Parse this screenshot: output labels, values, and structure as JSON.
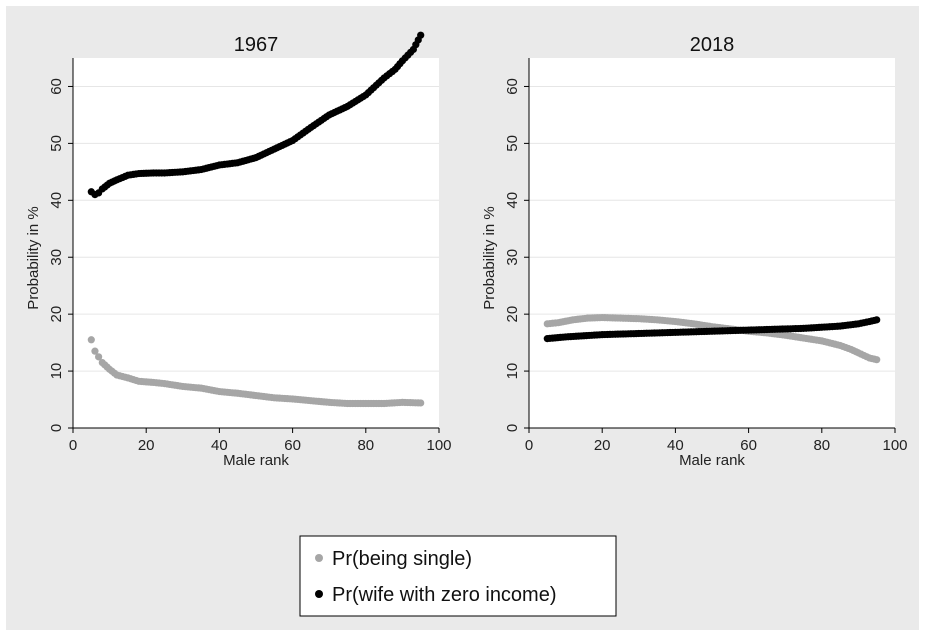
{
  "colors": {
    "background": "#eaeaea",
    "plot_background": "#ffffff",
    "single_series": "#a6a6a6",
    "zero_income_series": "#000000",
    "grid": "#e6e6e6"
  },
  "legend": {
    "position": "bottom-center",
    "items": [
      {
        "label": "Pr(being single)",
        "color": "#a6a6a6"
      },
      {
        "label": "Pr(wife with zero income)",
        "color": "#000000"
      }
    ]
  },
  "chart_data": [
    {
      "type": "scatter",
      "title": "1967",
      "xlabel": "Male rank",
      "ylabel": "Probability in %",
      "xlim": [
        0,
        100
      ],
      "ylim": [
        0,
        65
      ],
      "xticks": [
        0,
        20,
        40,
        60,
        80,
        100
      ],
      "yticks": [
        0,
        10,
        20,
        30,
        40,
        50,
        60
      ],
      "grid": "horizontal",
      "series": [
        {
          "name": "Pr(being single)",
          "x": [
            5,
            6,
            7,
            8,
            10,
            12,
            15,
            18,
            22,
            25,
            30,
            35,
            40,
            45,
            50,
            55,
            60,
            65,
            70,
            75,
            80,
            85,
            90,
            95
          ],
          "y": [
            15.5,
            13.5,
            12.5,
            11.5,
            10.3,
            9.3,
            8.8,
            8.2,
            8.0,
            7.8,
            7.3,
            7.0,
            6.4,
            6.1,
            5.7,
            5.3,
            5.1,
            4.8,
            4.5,
            4.3,
            4.3,
            4.3,
            4.5,
            4.4
          ]
        },
        {
          "name": "Pr(wife with zero income)",
          "x": [
            5,
            6,
            7,
            8,
            10,
            12,
            15,
            18,
            22,
            25,
            30,
            35,
            40,
            45,
            50,
            55,
            60,
            65,
            70,
            75,
            80,
            85,
            88,
            90,
            93,
            95
          ],
          "y": [
            41.5,
            41.0,
            41.3,
            42.0,
            43.0,
            43.6,
            44.4,
            44.7,
            44.8,
            44.8,
            45.0,
            45.4,
            46.2,
            46.6,
            47.5,
            49.0,
            50.5,
            52.8,
            55.0,
            56.5,
            58.5,
            61.5,
            63.0,
            64.5,
            66.5,
            69.0
          ]
        }
      ]
    },
    {
      "type": "scatter",
      "title": "2018",
      "xlabel": "Male rank",
      "ylabel": "Probability in %",
      "xlim": [
        0,
        100
      ],
      "ylim": [
        0,
        65
      ],
      "xticks": [
        0,
        20,
        40,
        60,
        80,
        100
      ],
      "yticks": [
        0,
        10,
        20,
        30,
        40,
        50,
        60
      ],
      "grid": "horizontal",
      "series": [
        {
          "name": "Pr(being single)",
          "x": [
            5,
            8,
            12,
            16,
            20,
            25,
            30,
            35,
            40,
            45,
            50,
            55,
            60,
            65,
            70,
            75,
            80,
            85,
            88,
            90,
            93,
            95
          ],
          "y": [
            18.3,
            18.5,
            19.0,
            19.3,
            19.4,
            19.3,
            19.2,
            19.0,
            18.7,
            18.3,
            17.8,
            17.4,
            17.0,
            16.7,
            16.3,
            15.8,
            15.3,
            14.5,
            13.8,
            13.2,
            12.3,
            12.0
          ]
        },
        {
          "name": "Pr(wife with zero income)",
          "x": [
            5,
            10,
            15,
            20,
            25,
            30,
            35,
            40,
            45,
            50,
            55,
            60,
            65,
            70,
            75,
            80,
            85,
            90,
            93,
            95
          ],
          "y": [
            15.7,
            16.0,
            16.2,
            16.4,
            16.5,
            16.6,
            16.7,
            16.8,
            16.9,
            17.0,
            17.1,
            17.2,
            17.3,
            17.4,
            17.5,
            17.7,
            17.9,
            18.3,
            18.7,
            19.0
          ]
        }
      ]
    }
  ]
}
